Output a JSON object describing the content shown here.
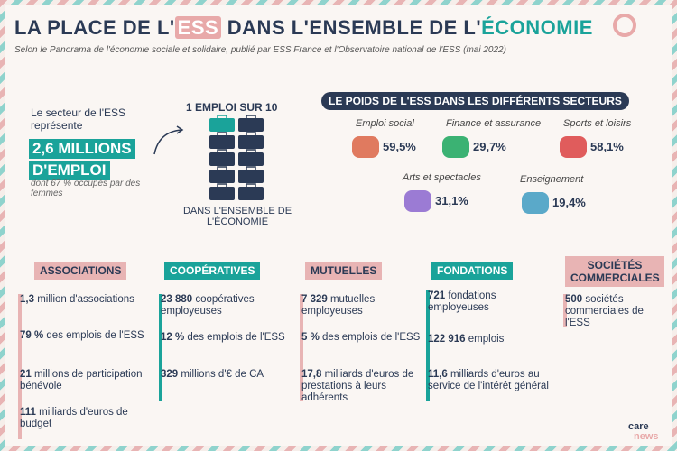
{
  "header": {
    "title_parts": [
      "LA PLACE DE L'",
      "ESS",
      " DANS L'ENSEMBLE DE L'",
      "ÉCONOMIE"
    ],
    "subtitle": "Selon le Panorama de l'économie sociale et solidaire, publié par ESS France et l'Observatoire national de l'ESS (mai 2022)"
  },
  "intro": {
    "lead": "Le secteur de l'ESS représente",
    "highlight": [
      "2,6 MILLIONS",
      "D'EMPLOI"
    ],
    "note": "dont 67 % occupés par des femmes"
  },
  "ratio": {
    "title": "1 EMPLOI SUR 10",
    "caption": "DANS L'ENSEMBLE DE L'ÉCONOMIE"
  },
  "sectors": {
    "title": "LE POIDS DE L'ESS DANS LES DIFFÉRENTS SECTEURS",
    "items": [
      {
        "name": "Emploi social",
        "value": "59,5%"
      },
      {
        "name": "Finance et assurance",
        "value": "29,7%"
      },
      {
        "name": "Sports et loisirs",
        "value": "58,1%"
      },
      {
        "name": "Arts et spectacles",
        "value": "31,1%"
      },
      {
        "name": "Enseignement",
        "value": "19,4%"
      }
    ]
  },
  "columns": [
    {
      "title": "ASSOCIATIONS",
      "stats": [
        {
          "figure": "1,3",
          "text": " million d'associations"
        },
        {
          "figure": "79 %",
          "text": " des emplois de l'ESS"
        },
        {
          "figure": "21",
          "text": " millions de participation bénévole"
        },
        {
          "figure": "111",
          "text": " milliards d'euros de budget"
        }
      ]
    },
    {
      "title": "COOPÉRATIVES",
      "stats": [
        {
          "figure": "23 880",
          "text": " coopératives employeuses"
        },
        {
          "figure": "12 %",
          "text": " des emplois de l'ESS"
        },
        {
          "figure": "329",
          "text": " millions d'€ de CA"
        }
      ]
    },
    {
      "title": "MUTUELLES",
      "stats": [
        {
          "figure": "7 329",
          "text": " mutuelles employeuses"
        },
        {
          "figure": "5 %",
          "text": " des emplois de l'ESS"
        },
        {
          "figure": "17,8",
          "text": " milliards d'euros de prestations à leurs adhérents"
        }
      ]
    },
    {
      "title": "FONDATIONS",
      "stats": [
        {
          "figure": "721",
          "text": " fondations employeuses"
        },
        {
          "figure": "122 916",
          "text": " emplois"
        },
        {
          "figure": "11,6",
          "text": " milliards d'euros au service de l'intérêt général"
        }
      ]
    },
    {
      "title": "SOCIÉTÉS COMMERCIALES",
      "stats": [
        {
          "figure": "500",
          "text": " sociétés commerciales de l'ESS"
        }
      ]
    }
  ],
  "logo": [
    "care",
    "news"
  ]
}
